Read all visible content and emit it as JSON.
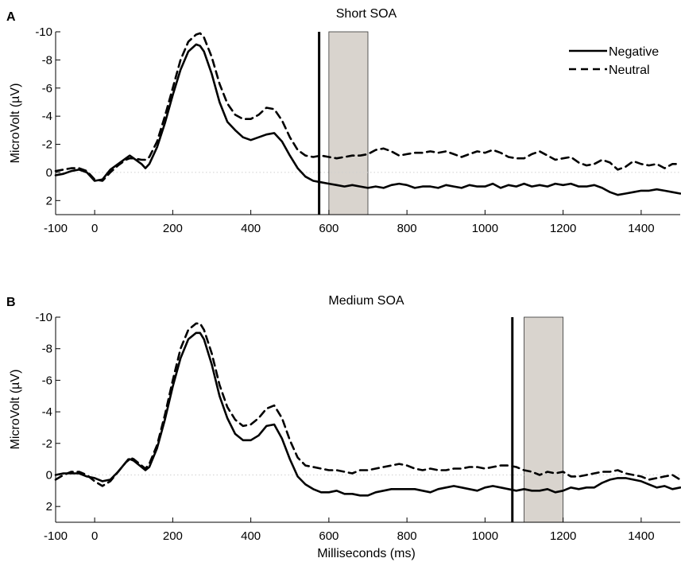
{
  "chart_data": [
    {
      "type": "line",
      "panel_label": "A",
      "title": "Short SOA",
      "xlabel": "",
      "ylabel": "MicroVolt (µV)",
      "xlim": [
        -100,
        1500
      ],
      "ylim": [
        3,
        -10
      ],
      "y_inverted": true,
      "xticks": [
        -100,
        0,
        200,
        400,
        600,
        800,
        1000,
        1200,
        1400
      ],
      "yticks": [
        -10,
        -8,
        -6,
        -4,
        -2,
        0,
        2
      ],
      "ytick_labels": [
        "-10",
        "-8",
        "-6",
        "-4",
        "-2",
        "0",
        "2"
      ],
      "xtick_labels": [
        "-100",
        "0",
        "200",
        "400",
        "600",
        "800",
        "1000",
        "1200",
        "1400"
      ],
      "vline_x": 575,
      "shaded_region": [
        600,
        700
      ],
      "legend": {
        "placement": "top-right",
        "entries": [
          "Negative",
          "Neutral"
        ]
      },
      "series": [
        {
          "name": "Negative",
          "style": "solid",
          "x": [
            -100,
            -80,
            -60,
            -40,
            -20,
            0,
            20,
            40,
            60,
            80,
            90,
            100,
            120,
            130,
            140,
            160,
            180,
            200,
            220,
            240,
            260,
            270,
            280,
            300,
            320,
            340,
            360,
            380,
            400,
            420,
            440,
            460,
            480,
            500,
            520,
            540,
            560,
            580,
            600,
            620,
            640,
            660,
            680,
            700,
            720,
            740,
            760,
            780,
            800,
            820,
            840,
            860,
            880,
            900,
            920,
            940,
            960,
            980,
            1000,
            1020,
            1040,
            1060,
            1080,
            1100,
            1120,
            1140,
            1160,
            1180,
            1200,
            1220,
            1240,
            1260,
            1280,
            1300,
            1320,
            1340,
            1360,
            1380,
            1400,
            1420,
            1440,
            1460,
            1480,
            1500
          ],
          "y": [
            0.2,
            0.1,
            -0.1,
            -0.2,
            0.0,
            0.6,
            0.5,
            -0.2,
            -0.6,
            -1.0,
            -1.2,
            -1.0,
            -0.6,
            -0.3,
            -0.6,
            -1.8,
            -3.5,
            -5.5,
            -7.3,
            -8.6,
            -9.1,
            -9.0,
            -8.6,
            -7.0,
            -5.0,
            -3.6,
            -3.0,
            -2.5,
            -2.3,
            -2.5,
            -2.7,
            -2.8,
            -2.2,
            -1.2,
            -0.3,
            0.3,
            0.6,
            0.7,
            0.8,
            0.9,
            1.0,
            0.9,
            1.0,
            1.1,
            1.0,
            1.1,
            0.9,
            0.8,
            0.9,
            1.1,
            1.0,
            1.0,
            1.1,
            0.9,
            1.0,
            1.1,
            0.9,
            1.0,
            1.0,
            0.8,
            1.1,
            0.9,
            1.0,
            0.8,
            1.0,
            0.9,
            1.0,
            0.8,
            0.9,
            0.8,
            1.0,
            1.0,
            0.9,
            1.1,
            1.4,
            1.6,
            1.5,
            1.4,
            1.3,
            1.3,
            1.2,
            1.3,
            1.4,
            1.5
          ]
        },
        {
          "name": "Neutral",
          "style": "dashed",
          "x": [
            -100,
            -80,
            -60,
            -40,
            -20,
            0,
            20,
            40,
            60,
            80,
            90,
            100,
            120,
            130,
            140,
            160,
            180,
            200,
            220,
            240,
            260,
            270,
            280,
            300,
            320,
            340,
            360,
            380,
            400,
            420,
            440,
            460,
            480,
            500,
            520,
            540,
            560,
            580,
            600,
            620,
            640,
            660,
            680,
            700,
            720,
            740,
            760,
            780,
            800,
            820,
            840,
            860,
            880,
            900,
            920,
            940,
            960,
            980,
            1000,
            1020,
            1040,
            1060,
            1080,
            1100,
            1120,
            1140,
            1160,
            1180,
            1200,
            1220,
            1240,
            1260,
            1280,
            1300,
            1320,
            1340,
            1360,
            1380,
            1400,
            1420,
            1440,
            1460,
            1480,
            1500
          ],
          "y": [
            -0.1,
            -0.2,
            -0.3,
            -0.3,
            -0.1,
            0.5,
            0.6,
            0.0,
            -0.5,
            -0.9,
            -1.0,
            -1.0,
            -0.9,
            -0.9,
            -1.1,
            -2.2,
            -4.0,
            -6.0,
            -8.0,
            -9.3,
            -9.8,
            -9.9,
            -9.6,
            -8.2,
            -6.3,
            -4.9,
            -4.1,
            -3.8,
            -3.8,
            -4.1,
            -4.6,
            -4.5,
            -3.7,
            -2.5,
            -1.6,
            -1.2,
            -1.1,
            -1.2,
            -1.1,
            -1.0,
            -1.1,
            -1.2,
            -1.2,
            -1.3,
            -1.6,
            -1.7,
            -1.5,
            -1.2,
            -1.3,
            -1.4,
            -1.4,
            -1.5,
            -1.4,
            -1.5,
            -1.3,
            -1.1,
            -1.3,
            -1.5,
            -1.4,
            -1.6,
            -1.4,
            -1.1,
            -1.0,
            -1.0,
            -1.3,
            -1.5,
            -1.2,
            -0.9,
            -1.0,
            -1.1,
            -0.7,
            -0.5,
            -0.6,
            -0.9,
            -0.7,
            -0.2,
            -0.4,
            -0.8,
            -0.6,
            -0.5,
            -0.6,
            -0.3,
            -0.6,
            -0.6
          ]
        }
      ]
    },
    {
      "type": "line",
      "panel_label": "B",
      "title": "Medium SOA",
      "xlabel": "Milliseconds (ms)",
      "ylabel": "MicroVolt (µV)",
      "xlim": [
        -100,
        1500
      ],
      "ylim": [
        3,
        -10
      ],
      "y_inverted": true,
      "xticks": [
        -100,
        0,
        200,
        400,
        600,
        800,
        1000,
        1200,
        1400
      ],
      "yticks": [
        -10,
        -8,
        -6,
        -4,
        -2,
        0,
        2
      ],
      "ytick_labels": [
        "-10",
        "-8",
        "-6",
        "-4",
        "-2",
        "0",
        "2"
      ],
      "xtick_labels": [
        "-100",
        "0",
        "200",
        "400",
        "600",
        "800",
        "1000",
        "1200",
        "1400"
      ],
      "vline_x": 1070,
      "shaded_region": [
        1100,
        1200
      ],
      "series": [
        {
          "name": "Negative",
          "style": "solid",
          "x": [
            -100,
            -80,
            -60,
            -40,
            -20,
            0,
            20,
            40,
            60,
            80,
            90,
            100,
            120,
            130,
            140,
            160,
            180,
            200,
            220,
            240,
            260,
            270,
            280,
            300,
            320,
            340,
            360,
            380,
            400,
            420,
            440,
            460,
            480,
            500,
            520,
            540,
            560,
            580,
            600,
            620,
            640,
            660,
            680,
            700,
            720,
            740,
            760,
            780,
            800,
            820,
            840,
            860,
            880,
            900,
            920,
            940,
            960,
            980,
            1000,
            1020,
            1040,
            1060,
            1080,
            1100,
            1120,
            1140,
            1160,
            1180,
            1200,
            1220,
            1240,
            1260,
            1280,
            1300,
            1320,
            1340,
            1360,
            1380,
            1400,
            1420,
            1440,
            1460,
            1480,
            1500
          ],
          "y": [
            0.0,
            -0.1,
            -0.1,
            -0.1,
            0.1,
            0.2,
            0.4,
            0.3,
            -0.2,
            -0.8,
            -1.0,
            -0.9,
            -0.5,
            -0.3,
            -0.5,
            -1.7,
            -3.5,
            -5.6,
            -7.4,
            -8.6,
            -9.0,
            -9.0,
            -8.6,
            -7.0,
            -5.0,
            -3.6,
            -2.6,
            -2.2,
            -2.2,
            -2.5,
            -3.1,
            -3.2,
            -2.3,
            -1.0,
            0.1,
            0.6,
            0.9,
            1.1,
            1.1,
            1.0,
            1.2,
            1.2,
            1.3,
            1.3,
            1.1,
            1.0,
            0.9,
            0.9,
            0.9,
            0.9,
            1.0,
            1.1,
            0.9,
            0.8,
            0.7,
            0.8,
            0.9,
            1.0,
            0.8,
            0.7,
            0.8,
            0.9,
            1.0,
            0.9,
            1.0,
            1.0,
            0.9,
            1.1,
            1.0,
            0.8,
            0.9,
            0.8,
            0.8,
            0.5,
            0.3,
            0.2,
            0.2,
            0.3,
            0.4,
            0.6,
            0.8,
            0.7,
            0.9,
            0.8
          ]
        },
        {
          "name": "Neutral",
          "style": "dashed",
          "x": [
            -100,
            -80,
            -60,
            -40,
            -20,
            0,
            20,
            40,
            60,
            80,
            90,
            100,
            120,
            130,
            140,
            160,
            180,
            200,
            220,
            240,
            260,
            270,
            280,
            300,
            320,
            340,
            360,
            380,
            400,
            420,
            440,
            460,
            480,
            500,
            520,
            540,
            560,
            580,
            600,
            620,
            640,
            660,
            680,
            700,
            720,
            740,
            760,
            780,
            800,
            820,
            840,
            860,
            880,
            900,
            920,
            940,
            960,
            980,
            1000,
            1020,
            1040,
            1060,
            1080,
            1100,
            1120,
            1140,
            1160,
            1180,
            1200,
            1220,
            1240,
            1260,
            1280,
            1300,
            1320,
            1340,
            1360,
            1380,
            1400,
            1420,
            1440,
            1460,
            1480,
            1500
          ],
          "y": [
            0.3,
            0.0,
            -0.2,
            -0.2,
            0.0,
            0.4,
            0.7,
            0.4,
            -0.2,
            -0.8,
            -1.1,
            -1.0,
            -0.6,
            -0.4,
            -0.7,
            -1.9,
            -3.8,
            -6.0,
            -8.0,
            -9.2,
            -9.6,
            -9.6,
            -9.2,
            -7.7,
            -5.7,
            -4.3,
            -3.5,
            -3.1,
            -3.2,
            -3.6,
            -4.2,
            -4.4,
            -3.6,
            -2.2,
            -1.1,
            -0.6,
            -0.5,
            -0.4,
            -0.3,
            -0.3,
            -0.2,
            -0.1,
            -0.3,
            -0.3,
            -0.4,
            -0.5,
            -0.6,
            -0.7,
            -0.6,
            -0.4,
            -0.3,
            -0.4,
            -0.3,
            -0.3,
            -0.4,
            -0.4,
            -0.5,
            -0.5,
            -0.4,
            -0.5,
            -0.6,
            -0.6,
            -0.5,
            -0.3,
            -0.2,
            0.0,
            -0.2,
            -0.1,
            -0.2,
            0.1,
            0.1,
            0.0,
            -0.1,
            -0.2,
            -0.2,
            -0.3,
            -0.1,
            0.0,
            0.1,
            0.3,
            0.2,
            0.1,
            0.0,
            0.3
          ]
        }
      ]
    }
  ]
}
